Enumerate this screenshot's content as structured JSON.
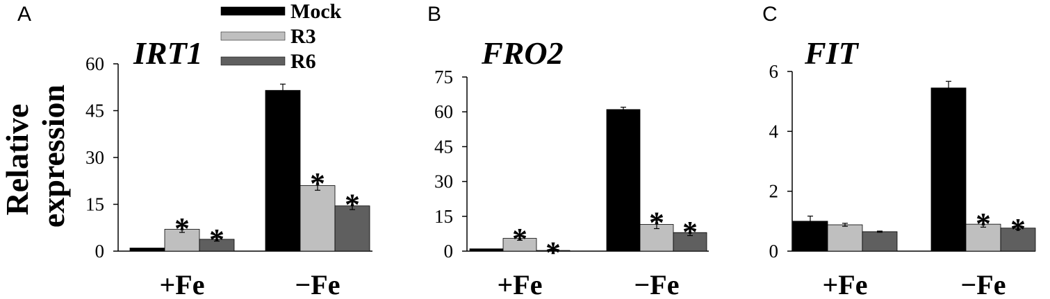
{
  "figure": {
    "ylabel_line1": "Relative",
    "ylabel_line2": "expression",
    "legend": {
      "placement": "top-center",
      "entries": [
        {
          "name": "Mock",
          "color": "#000000"
        },
        {
          "name": "R3",
          "color": "#bfbfbf"
        },
        {
          "name": "R6",
          "color": "#5f5f5f"
        }
      ]
    }
  },
  "chart_data": [
    {
      "type": "bar",
      "panel": "A",
      "title": "IRT1",
      "categories": [
        "+Fe",
        "−Fe"
      ],
      "ylim": [
        0,
        60
      ],
      "yticks": [
        0,
        15,
        30,
        45,
        60
      ],
      "series": [
        {
          "name": "Mock",
          "values": [
            1,
            51.5
          ],
          "errors": [
            0,
            2
          ],
          "significant": [
            false,
            false
          ]
        },
        {
          "name": "R3",
          "values": [
            7,
            21
          ],
          "errors": [
            1,
            1.5
          ],
          "significant": [
            true,
            true
          ]
        },
        {
          "name": "R6",
          "values": [
            3.8,
            14.5
          ],
          "errors": [
            0.6,
            1.2
          ],
          "significant": [
            true,
            true
          ]
        }
      ],
      "significance_marker": "*"
    },
    {
      "type": "bar",
      "panel": "B",
      "title": "FRO2",
      "categories": [
        "+Fe",
        "−Fe"
      ],
      "ylim": [
        0,
        75
      ],
      "yticks": [
        0,
        15,
        30,
        45,
        60,
        75
      ],
      "series": [
        {
          "name": "Mock",
          "values": [
            1,
            61
          ],
          "errors": [
            0,
            1
          ],
          "significant": [
            false,
            false
          ]
        },
        {
          "name": "R3",
          "values": [
            5.5,
            11.5
          ],
          "errors": [
            0.8,
            1.8
          ],
          "significant": [
            true,
            true
          ]
        },
        {
          "name": "R6",
          "values": [
            0.3,
            8
          ],
          "errors": [
            0.2,
            1.3
          ],
          "significant": [
            true,
            true
          ]
        }
      ],
      "significance_marker": "*"
    },
    {
      "type": "bar",
      "panel": "C",
      "title": "FIT",
      "categories": [
        "+Fe",
        "−Fe"
      ],
      "ylim": [
        0,
        6
      ],
      "yticks": [
        0,
        2,
        4,
        6
      ],
      "series": [
        {
          "name": "Mock",
          "values": [
            1.0,
            5.45
          ],
          "errors": [
            0.17,
            0.22
          ],
          "significant": [
            false,
            false
          ]
        },
        {
          "name": "R3",
          "values": [
            0.88,
            0.9
          ],
          "errors": [
            0.05,
            0.1
          ],
          "significant": [
            false,
            true
          ]
        },
        {
          "name": "R6",
          "values": [
            0.65,
            0.77
          ],
          "errors": [
            0.02,
            0.04
          ],
          "significant": [
            false,
            true
          ]
        }
      ],
      "significance_marker": "*"
    }
  ]
}
